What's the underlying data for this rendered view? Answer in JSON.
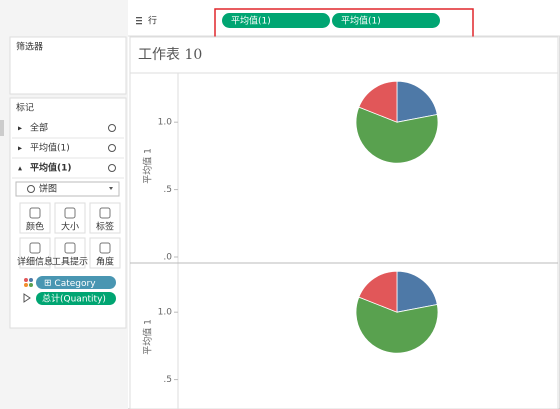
{
  "toolbar": {
    "rows_label": "行",
    "pills": [
      "平均值(1)",
      "平均值(1)"
    ]
  },
  "filters": {
    "title": "筛选器"
  },
  "marks": {
    "title": "标记",
    "groups": [
      "全部",
      "平均值(1)",
      "平均值(1)"
    ],
    "mark_type": "饼图",
    "buttons": [
      "颜色",
      "大小",
      "标签",
      "详细信息",
      "工具提示",
      "角度"
    ],
    "fields": [
      "Category",
      "总计(Quantity)"
    ]
  },
  "sheet": {
    "title": "工作表 10",
    "panes": [
      {
        "axis_title": "平均值 1",
        "ylim": [
          0,
          1.35
        ],
        "yticks": [
          {
            "value": 1,
            "label": "1.0"
          },
          {
            "value": 0.5,
            "label": ".5"
          },
          {
            "value": 0,
            "label": ".0"
          }
        ],
        "y": 1,
        "slices": {
          "values": [
            22,
            59,
            19
          ],
          "colors": [
            "#4e79a7",
            "#59a14f",
            "#e15759"
          ]
        }
      },
      {
        "axis_title": "平均值 1",
        "ylim": [
          0,
          1.35
        ],
        "yticks": [
          {
            "value": 1,
            "label": "1.0"
          },
          {
            "value": 0.5,
            "label": ".5"
          }
        ],
        "y": 1,
        "slices": {
          "values": [
            22,
            59,
            19
          ],
          "colors": [
            "#4e79a7",
            "#59a14f",
            "#e15759"
          ]
        }
      }
    ]
  }
}
